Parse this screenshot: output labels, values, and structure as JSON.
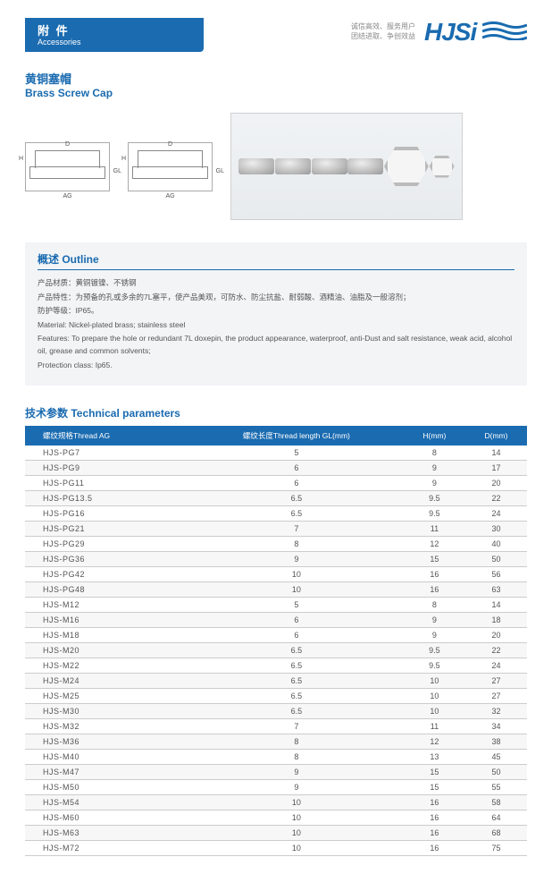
{
  "header": {
    "section_cn": "附 件",
    "section_en": "Accessories",
    "tagline_1": "诚信高效、服务用户",
    "tagline_2": "团结进取、争创效益",
    "logo_text": "HJSi"
  },
  "product": {
    "title_cn": "黄铜塞帽",
    "title_en": "Brass Screw Cap"
  },
  "diagram_labels": {
    "d": "D",
    "h": "H",
    "gl": "GL",
    "ag": "AG"
  },
  "outline": {
    "title": "概述 Outline",
    "lines": [
      "产品材质：黄铜镀镍、不锈钢",
      "产品特性：为预备的孔或多余的7L塞平，使产品美观，可防水、防尘抗盐、耐弱酸、酒精油、油脂及一般溶剂；",
      "防护等级：IP65。",
      "Material: Nickel-plated brass; stainless steel",
      "Features: To prepare the hole or redundant 7L doxepin, the product appearance, waterproof, anti-Dust and salt resistance, weak acid, alcohol oil, grease and common solvents;",
      "Protection class: Ip65."
    ]
  },
  "tech": {
    "title": "技术参数 Technical parameters",
    "columns": [
      "螺纹规格Thread AG",
      "螺纹长度Thread length GL(mm)",
      "H(mm)",
      "D(mm)"
    ],
    "rows": [
      [
        "HJS-PG7",
        "5",
        "8",
        "14"
      ],
      [
        "HJS-PG9",
        "6",
        "9",
        "17"
      ],
      [
        "HJS-PG11",
        "6",
        "9",
        "20"
      ],
      [
        "HJS-PG13.5",
        "6.5",
        "9.5",
        "22"
      ],
      [
        "HJS-PG16",
        "6.5",
        "9.5",
        "24"
      ],
      [
        "HJS-PG21",
        "7",
        "11",
        "30"
      ],
      [
        "HJS-PG29",
        "8",
        "12",
        "40"
      ],
      [
        "HJS-PG36",
        "9",
        "15",
        "50"
      ],
      [
        "HJS-PG42",
        "10",
        "16",
        "56"
      ],
      [
        "HJS-PG48",
        "10",
        "16",
        "63"
      ],
      [
        "HJS-M12",
        "5",
        "8",
        "14"
      ],
      [
        "HJS-M16",
        "6",
        "9",
        "18"
      ],
      [
        "HJS-M18",
        "6",
        "9",
        "20"
      ],
      [
        "HJS-M20",
        "6.5",
        "9.5",
        "22"
      ],
      [
        "HJS-M22",
        "6.5",
        "9.5",
        "24"
      ],
      [
        "HJS-M24",
        "6.5",
        "10",
        "27"
      ],
      [
        "HJS-M25",
        "6.5",
        "10",
        "27"
      ],
      [
        "HJS-M30",
        "6.5",
        "10",
        "32"
      ],
      [
        "HJS-M32",
        "7",
        "11",
        "34"
      ],
      [
        "HJS-M36",
        "8",
        "12",
        "38"
      ],
      [
        "HJS-M40",
        "8",
        "13",
        "45"
      ],
      [
        "HJS-M47",
        "9",
        "15",
        "50"
      ],
      [
        "HJS-M50",
        "9",
        "15",
        "55"
      ],
      [
        "HJS-M54",
        "10",
        "16",
        "58"
      ],
      [
        "HJS-M60",
        "10",
        "16",
        "64"
      ],
      [
        "HJS-M63",
        "10",
        "16",
        "68"
      ],
      [
        "HJS-M72",
        "10",
        "16",
        "75"
      ]
    ]
  }
}
